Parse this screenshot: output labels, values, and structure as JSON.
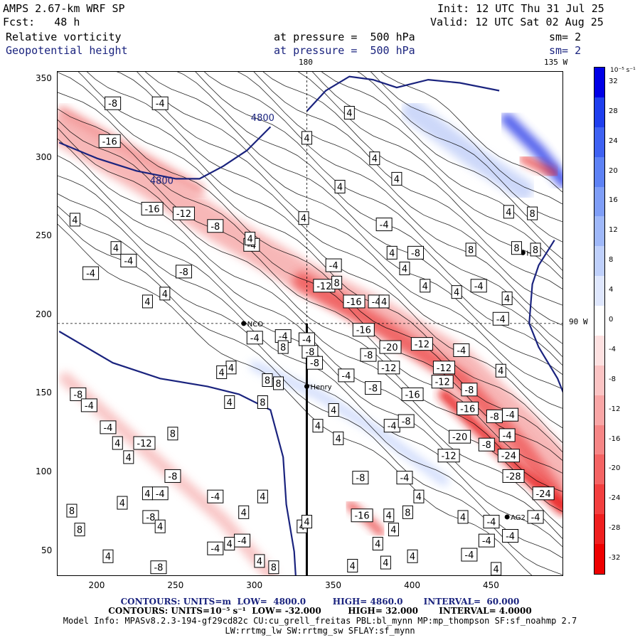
{
  "header": {
    "model": "AMPS 2.67-km WRF SP",
    "fcst": "Fcst:   48 h",
    "field1": "Relative vorticity",
    "field2": "Geopotential height",
    "pressure1": "at pressure =  500 hPa",
    "pressure2": "at pressure =  500 hPa",
    "init": "Init: 12 UTC Thu 31 Jul 25",
    "valid": "Valid: 12 UTC Sat 02 Aug 25",
    "sm1": "sm= 2",
    "sm2": "sm= 2"
  },
  "map_labels": {
    "lon180": "180",
    "lon135w": "135 W",
    "lon90w": "90 W",
    "stations": [
      "NCO",
      "HRC",
      "AG2",
      "Henry"
    ]
  },
  "colorbar": {
    "unit": "10⁻⁵ s⁻¹",
    "ticks": [
      "32",
      "28",
      "24",
      "20",
      "16",
      "12",
      "8",
      "4",
      "0",
      "-4",
      "-8",
      "-12",
      "-16",
      "-20",
      "-24",
      "-28",
      "-32"
    ],
    "colors": [
      "#0000e6",
      "#1f3fee",
      "#3f62f2",
      "#5e82f5",
      "#7f9ef7",
      "#9fb8f9",
      "#bfd0fb",
      "#dfe7fd",
      "#ffffff",
      "#fde1e1",
      "#fbc4c4",
      "#f9a6a6",
      "#f68686",
      "#f46464",
      "#f23f3f",
      "#ef1f1f",
      "#ee0000"
    ]
  },
  "footer": {
    "line1": "CONTOURS: UNITS=m  LOW=  4800.0         HIGH= 4860.0       INTERVAL=  60.000",
    "line2": "CONTOURS: UNITS=10⁻⁵ s⁻¹  LOW= -32.000         HIGH= 32.000       INTERVAL= 4.0000",
    "line3": "Model Info: MPASv8.2.3-194-gf29cd82c CU:cu_grell_freitas PBL:bl_mynn MP:mp_thompson SF:sf_noahmp 2.7",
    "line4": "LW:rrtmg_lw SW:rrtmg_sw SFLAY:sf_mynn"
  },
  "chart_data": {
    "type": "heatmap",
    "x_ticks": [
      200,
      250,
      300,
      350,
      400,
      450
    ],
    "y_ticks": [
      50,
      100,
      150,
      200,
      250,
      300,
      350
    ],
    "xlim": [
      175,
      496
    ],
    "ylim": [
      34,
      355
    ],
    "contour_labels_vorticity": [
      {
        "x": 210,
        "y": 335,
        "v": "-8"
      },
      {
        "x": 240,
        "y": 335,
        "v": "-4"
      },
      {
        "x": 208,
        "y": 311,
        "v": "-16"
      },
      {
        "x": 235,
        "y": 268,
        "v": "-16"
      },
      {
        "x": 255,
        "y": 265,
        "v": "-12"
      },
      {
        "x": 275,
        "y": 257,
        "v": "-8"
      },
      {
        "x": 186,
        "y": 261,
        "v": "4"
      },
      {
        "x": 212,
        "y": 243,
        "v": "4"
      },
      {
        "x": 196,
        "y": 227,
        "v": "-4"
      },
      {
        "x": 220,
        "y": 235,
        "v": "-4"
      },
      {
        "x": 255,
        "y": 228,
        "v": "-8"
      },
      {
        "x": 243,
        "y": 214,
        "v": "4"
      },
      {
        "x": 232,
        "y": 209,
        "v": "4"
      },
      {
        "x": 298,
        "y": 245,
        "v": "-4"
      },
      {
        "x": 297,
        "y": 249,
        "v": "4"
      },
      {
        "x": 300,
        "y": 186,
        "v": "-4"
      },
      {
        "x": 318,
        "y": 187,
        "v": "-4"
      },
      {
        "x": 335,
        "y": 177,
        "v": "-8"
      },
      {
        "x": 318,
        "y": 180,
        "v": "8"
      },
      {
        "x": 285,
        "y": 167,
        "v": "4"
      },
      {
        "x": 279,
        "y": 164,
        "v": "4"
      },
      {
        "x": 308,
        "y": 159,
        "v": "8"
      },
      {
        "x": 315,
        "y": 157,
        "v": "8"
      },
      {
        "x": 305,
        "y": 145,
        "v": "8"
      },
      {
        "x": 188,
        "y": 150,
        "v": "-8"
      },
      {
        "x": 195,
        "y": 143,
        "v": "-4"
      },
      {
        "x": 207,
        "y": 129,
        "v": "-4"
      },
      {
        "x": 213,
        "y": 119,
        "v": "4"
      },
      {
        "x": 230,
        "y": 119,
        "v": "-12"
      },
      {
        "x": 248,
        "y": 125,
        "v": "8"
      },
      {
        "x": 220,
        "y": 110,
        "v": "4"
      },
      {
        "x": 248,
        "y": 98,
        "v": "-8"
      },
      {
        "x": 240,
        "y": 87,
        "v": "-4"
      },
      {
        "x": 275,
        "y": 85,
        "v": "-4"
      },
      {
        "x": 293,
        "y": 75,
        "v": "4"
      },
      {
        "x": 305,
        "y": 85,
        "v": "4"
      },
      {
        "x": 216,
        "y": 81,
        "v": "4"
      },
      {
        "x": 232,
        "y": 87,
        "v": "4"
      },
      {
        "x": 184,
        "y": 76,
        "v": "8"
      },
      {
        "x": 189,
        "y": 64,
        "v": "8"
      },
      {
        "x": 234,
        "y": 72,
        "v": "-8"
      },
      {
        "x": 240,
        "y": 66,
        "v": "4"
      },
      {
        "x": 275,
        "y": 52,
        "v": "-4"
      },
      {
        "x": 292,
        "y": 57,
        "v": "-4"
      },
      {
        "x": 239,
        "y": 40,
        "v": "-8"
      },
      {
        "x": 207,
        "y": 47,
        "v": "4"
      },
      {
        "x": 303,
        "y": 44,
        "v": "4"
      },
      {
        "x": 312,
        "y": 40,
        "v": "8"
      },
      {
        "x": 330,
        "y": 66,
        "v": "4"
      },
      {
        "x": 333,
        "y": 185,
        "v": "-4"
      },
      {
        "x": 338,
        "y": 170,
        "v": "-8"
      },
      {
        "x": 344,
        "y": 219,
        "v": "-12"
      },
      {
        "x": 352,
        "y": 221,
        "v": "8"
      },
      {
        "x": 363,
        "y": 209,
        "v": "-16"
      },
      {
        "x": 377,
        "y": 209,
        "v": "-4"
      },
      {
        "x": 369,
        "y": 191,
        "v": "-16"
      },
      {
        "x": 372,
        "y": 175,
        "v": "-8"
      },
      {
        "x": 386,
        "y": 180,
        "v": "-20"
      },
      {
        "x": 385,
        "y": 167,
        "v": "-12"
      },
      {
        "x": 406,
        "y": 182,
        "v": "-12"
      },
      {
        "x": 382,
        "y": 209,
        "v": "4"
      },
      {
        "x": 350,
        "y": 232,
        "v": "-4"
      },
      {
        "x": 395,
        "y": 230,
        "v": "4"
      },
      {
        "x": 402,
        "y": 240,
        "v": "-8"
      },
      {
        "x": 382,
        "y": 258,
        "v": "-4"
      },
      {
        "x": 387,
        "y": 240,
        "v": "4"
      },
      {
        "x": 408,
        "y": 219,
        "v": "4"
      },
      {
        "x": 437,
        "y": 242,
        "v": "8"
      },
      {
        "x": 442,
        "y": 219,
        "v": "-4"
      },
      {
        "x": 456,
        "y": 198,
        "v": "-4"
      },
      {
        "x": 460,
        "y": 211,
        "v": "4"
      },
      {
        "x": 428,
        "y": 215,
        "v": "4"
      },
      {
        "x": 420,
        "y": 167,
        "v": "-12"
      },
      {
        "x": 431,
        "y": 178,
        "v": "-4"
      },
      {
        "x": 358,
        "y": 162,
        "v": "-4"
      },
      {
        "x": 375,
        "y": 154,
        "v": "-8"
      },
      {
        "x": 400,
        "y": 150,
        "v": "-16"
      },
      {
        "x": 419,
        "y": 158,
        "v": "-12"
      },
      {
        "x": 436,
        "y": 153,
        "v": "-8"
      },
      {
        "x": 435,
        "y": 141,
        "v": "-16"
      },
      {
        "x": 456,
        "y": 165,
        "v": "4"
      },
      {
        "x": 387,
        "y": 130,
        "v": "-4"
      },
      {
        "x": 396,
        "y": 133,
        "v": "-8"
      },
      {
        "x": 430,
        "y": 123,
        "v": "-20"
      },
      {
        "x": 423,
        "y": 111,
        "v": "-12"
      },
      {
        "x": 452,
        "y": 136,
        "v": "-8"
      },
      {
        "x": 462,
        "y": 137,
        "v": "-4"
      },
      {
        "x": 447,
        "y": 118,
        "v": "-8"
      },
      {
        "x": 461,
        "y": 111,
        "v": "-24"
      },
      {
        "x": 464,
        "y": 98,
        "v": "-28"
      },
      {
        "x": 460,
        "y": 124,
        "v": "-4"
      },
      {
        "x": 483,
        "y": 87,
        "v": "-24"
      },
      {
        "x": 478,
        "y": 72,
        "v": "-4"
      },
      {
        "x": 350,
        "y": 140,
        "v": "4"
      },
      {
        "x": 340,
        "y": 130,
        "v": "4"
      },
      {
        "x": 353,
        "y": 122,
        "v": "4"
      },
      {
        "x": 367,
        "y": 97,
        "v": "-8"
      },
      {
        "x": 395,
        "y": 97,
        "v": "-4"
      },
      {
        "x": 368,
        "y": 73,
        "v": "-16"
      },
      {
        "x": 385,
        "y": 73,
        "v": "4"
      },
      {
        "x": 397,
        "y": 75,
        "v": "8"
      },
      {
        "x": 404,
        "y": 85,
        "v": "4"
      },
      {
        "x": 432,
        "y": 72,
        "v": "4"
      },
      {
        "x": 450,
        "y": 69,
        "v": "-4"
      },
      {
        "x": 447,
        "y": 57,
        "v": "-4"
      },
      {
        "x": 388,
        "y": 64,
        "v": "4"
      },
      {
        "x": 378,
        "y": 55,
        "v": "4"
      },
      {
        "x": 383,
        "y": 43,
        "v": "4"
      },
      {
        "x": 400,
        "y": 47,
        "v": "4"
      },
      {
        "x": 436,
        "y": 48,
        "v": "-4"
      },
      {
        "x": 453,
        "y": 39,
        "v": "4"
      },
      {
        "x": 362,
        "y": 41,
        "v": "4"
      },
      {
        "x": 333,
        "y": 69,
        "v": "4"
      },
      {
        "x": 284,
        "y": 145,
        "v": "4"
      },
      {
        "x": 284,
        "y": 55,
        "v": "4"
      },
      {
        "x": 462,
        "y": 60,
        "v": "-4"
      },
      {
        "x": 461,
        "y": 266,
        "v": "4"
      },
      {
        "x": 476,
        "y": 265,
        "v": "8"
      },
      {
        "x": 466,
        "y": 243,
        "v": "8"
      },
      {
        "x": 478,
        "y": 242,
        "v": "8"
      },
      {
        "x": 331,
        "y": 262,
        "v": "4"
      },
      {
        "x": 354,
        "y": 282,
        "v": "4"
      },
      {
        "x": 376,
        "y": 300,
        "v": "4"
      },
      {
        "x": 390,
        "y": 287,
        "v": "4"
      },
      {
        "x": 360,
        "y": 329,
        "v": "4"
      },
      {
        "x": 333,
        "y": 313,
        "v": "4"
      }
    ],
    "contour_labels_height": [
      {
        "x": 305,
        "y": 326,
        "v": "4800"
      },
      {
        "x": 241,
        "y": 286,
        "v": "4800"
      }
    ]
  }
}
